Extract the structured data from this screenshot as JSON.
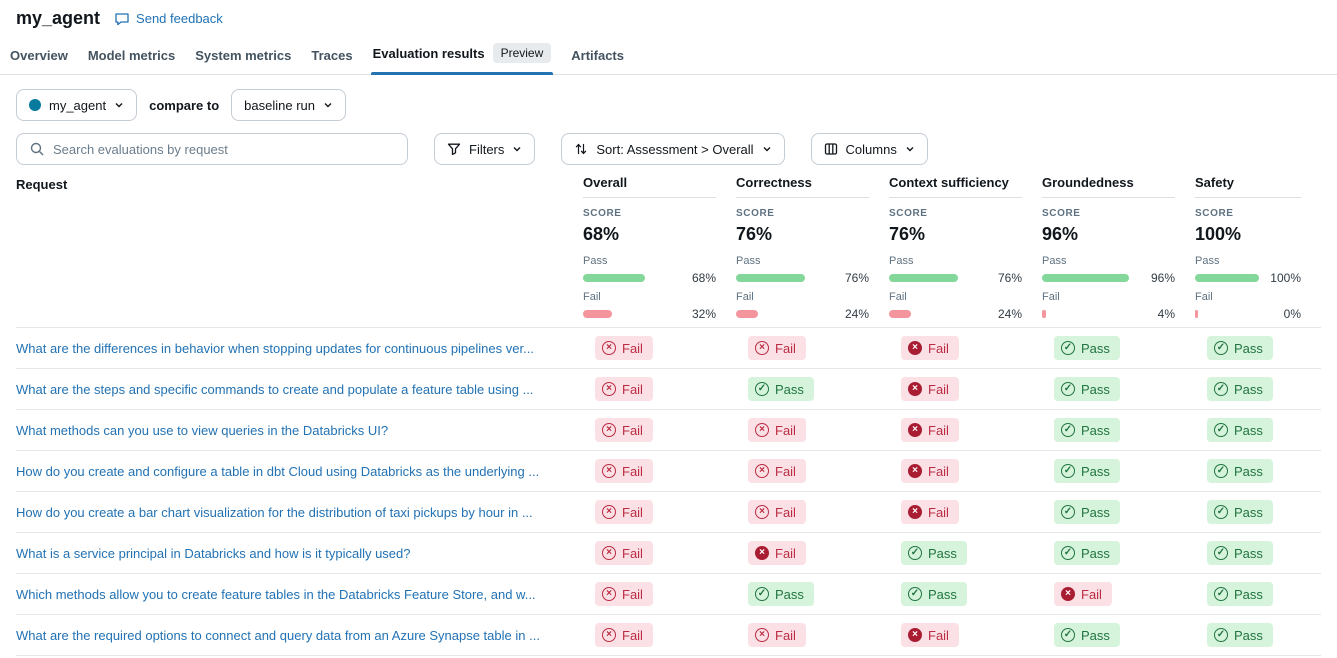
{
  "header": {
    "title": "my_agent",
    "feedback_label": "Send feedback"
  },
  "tabs": [
    {
      "label": "Overview",
      "active": false
    },
    {
      "label": "Model metrics",
      "active": false
    },
    {
      "label": "System metrics",
      "active": false
    },
    {
      "label": "Traces",
      "active": false
    },
    {
      "label": "Evaluation results",
      "active": true,
      "badge": "Preview"
    },
    {
      "label": "Artifacts",
      "active": false
    }
  ],
  "controls": {
    "run_selector": {
      "label": "my_agent",
      "dot_color": "#077a9d"
    },
    "compare_label": "compare to",
    "baseline_selector": {
      "label": "baseline run"
    },
    "search": {
      "placeholder": "Search evaluations by request"
    },
    "filters": {
      "label": "Filters"
    },
    "sort": {
      "label": "Sort: Assessment > Overall"
    },
    "columns": {
      "label": "Columns"
    }
  },
  "table": {
    "request_header": "Request",
    "score_label": "SCORE",
    "pass_label": "Pass",
    "fail_label": "Fail",
    "badge_labels": {
      "pass": "Pass",
      "fail": "Fail"
    },
    "glyphs": {
      "pass": "✓",
      "fail": "×"
    },
    "metrics": [
      {
        "name": "Overall",
        "score": "68%",
        "pass_pct": 68,
        "fail_pct": 32
      },
      {
        "name": "Correctness",
        "score": "76%",
        "pass_pct": 76,
        "fail_pct": 24
      },
      {
        "name": "Context sufficiency",
        "score": "76%",
        "pass_pct": 76,
        "fail_pct": 24
      },
      {
        "name": "Groundedness",
        "score": "96%",
        "pass_pct": 96,
        "fail_pct": 4
      },
      {
        "name": "Safety",
        "score": "100%",
        "pass_pct": 100,
        "fail_pct": 0
      }
    ],
    "rows": [
      {
        "request": "What are the differences in behavior when stopping updates for continuous pipelines ver...",
        "results": [
          "fail",
          "fail",
          "fail-filled",
          "pass",
          "pass"
        ]
      },
      {
        "request": "What are the steps and specific commands to create and populate a feature table using ...",
        "results": [
          "fail",
          "pass",
          "fail-filled",
          "pass",
          "pass"
        ]
      },
      {
        "request": "What methods can you use to view queries in the Databricks UI?",
        "results": [
          "fail",
          "fail",
          "fail-filled",
          "pass",
          "pass"
        ]
      },
      {
        "request": "How do you create and configure a table in dbt Cloud using Databricks as the underlying ...",
        "results": [
          "fail",
          "fail",
          "fail-filled",
          "pass",
          "pass"
        ]
      },
      {
        "request": "How do you create a bar chart visualization for the distribution of taxi pickups by hour in ...",
        "results": [
          "fail",
          "fail",
          "fail-filled",
          "pass",
          "pass"
        ]
      },
      {
        "request": "What is a service principal in Databricks and how is it typically used?",
        "results": [
          "fail",
          "fail-filled",
          "pass",
          "pass",
          "pass"
        ]
      },
      {
        "request": "Which methods allow you to create feature tables in the Databricks Feature Store, and w...",
        "results": [
          "fail",
          "pass",
          "pass",
          "fail-filled",
          "pass"
        ]
      },
      {
        "request": "What are the required options to connect and query data from an Azure Synapse table in ...",
        "results": [
          "fail",
          "fail",
          "fail-filled",
          "pass",
          "pass"
        ]
      }
    ]
  },
  "colors": {
    "accent_blue": "#2272b4",
    "pass_text": "#20753f",
    "pass_bg": "#d6f3dc",
    "pass_bar": "#84d79a",
    "fail_text": "#bb2b43",
    "fail_bg": "#fbe1e5",
    "fail_bar": "#f4949c",
    "fail_filled": "#a91d32"
  }
}
